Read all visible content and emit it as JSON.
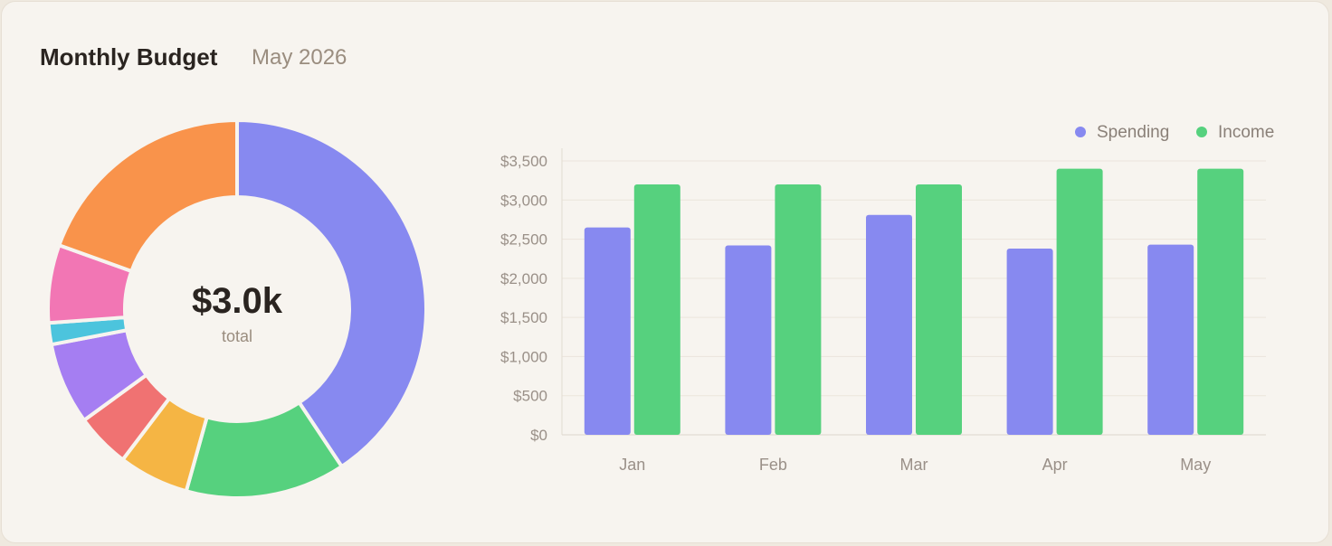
{
  "header": {
    "title": "Monthly Budget",
    "period": "May 2026"
  },
  "donut": {
    "center_value": "$3.0k",
    "center_label": "total"
  },
  "chart_data": [
    {
      "type": "pie",
      "variant": "donut",
      "slices": [
        {
          "value": 1220,
          "color": "#8789f0"
        },
        {
          "value": 410,
          "color": "#56d17e"
        },
        {
          "value": 180,
          "color": "#f5b544"
        },
        {
          "value": 140,
          "color": "#f07272"
        },
        {
          "value": 210,
          "color": "#a57ef2"
        },
        {
          "value": 55,
          "color": "#4cc4dd"
        },
        {
          "value": 200,
          "color": "#f276b4"
        },
        {
          "value": 585,
          "color": "#f9934b"
        }
      ]
    },
    {
      "type": "bar",
      "categories": [
        "Jan",
        "Feb",
        "Mar",
        "Apr",
        "May"
      ],
      "series": [
        {
          "name": "Spending",
          "color": "#8789f0",
          "values": [
            2650,
            2420,
            2810,
            2380,
            2430
          ]
        },
        {
          "name": "Income",
          "color": "#56d17e",
          "values": [
            3200,
            3200,
            3200,
            3400,
            3400
          ]
        }
      ],
      "ylim": [
        0,
        3500
      ],
      "yticks": [
        "$0",
        "$500",
        "$1,000",
        "$1,500",
        "$2,000",
        "$2,500",
        "$3,000",
        "$3,500"
      ],
      "grid": true,
      "legend": "top-right"
    }
  ]
}
